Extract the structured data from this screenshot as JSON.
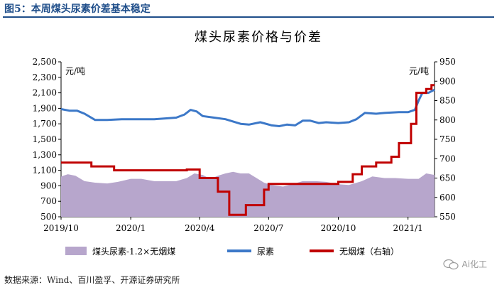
{
  "caption": "图5：本周煤头尿素价差基本稳定",
  "source": "数据来源：Wind、百川盈孚、开源证券研究所",
  "watermark": "Ai化工",
  "chart_data": {
    "type": "line",
    "title": "煤头尿素价格与价差",
    "left_unit": "元/吨",
    "right_unit": "元/吨",
    "ylim_left": [
      500,
      2500
    ],
    "yticks_left": [
      500,
      700,
      900,
      1100,
      1300,
      1500,
      1700,
      1900,
      2100,
      2300,
      2500
    ],
    "ytick_labels_left": [
      "500",
      "700",
      "900",
      "1,100",
      "1,300",
      "1,500",
      "1,700",
      "1,900",
      "2,100",
      "2,300",
      "2,500"
    ],
    "ylim_right": [
      550,
      950
    ],
    "yticks_right": [
      550,
      600,
      650,
      700,
      750,
      800,
      850,
      900,
      950
    ],
    "ytick_labels_right": [
      "550",
      "600",
      "650",
      "700",
      "750",
      "800",
      "850",
      "900",
      "950"
    ],
    "x_range": [
      "2019-10-01",
      "2021-02-05"
    ],
    "x_ticks": [
      "2019-10-01",
      "2020-01-01",
      "2020-04-01",
      "2020-07-01",
      "2020-10-01",
      "2021-01-01"
    ],
    "x_tick_labels": [
      "2019/10",
      "2020/1",
      "2020/4",
      "2020/7",
      "2020/10",
      "2021/1"
    ],
    "colors": {
      "spread": "#b7a6cc",
      "urea": "#3c78c8",
      "coal": "#c00000"
    },
    "series": [
      {
        "name": "煤头尿素-1.2×无烟煤",
        "axis": "left",
        "kind": "area",
        "points": [
          [
            "2019-10-01",
            1020
          ],
          [
            "2019-10-10",
            1050
          ],
          [
            "2019-10-20",
            1030
          ],
          [
            "2019-11-01",
            960
          ],
          [
            "2019-11-15",
            940
          ],
          [
            "2019-12-01",
            930
          ],
          [
            "2019-12-15",
            950
          ],
          [
            "2020-01-01",
            990
          ],
          [
            "2020-01-15",
            990
          ],
          [
            "2020-02-01",
            960
          ],
          [
            "2020-02-15",
            960
          ],
          [
            "2020-03-01",
            960
          ],
          [
            "2020-03-15",
            1000
          ],
          [
            "2020-03-25",
            1060
          ],
          [
            "2020-04-05",
            1040
          ],
          [
            "2020-04-15",
            990
          ],
          [
            "2020-04-25",
            1030
          ],
          [
            "2020-05-05",
            1060
          ],
          [
            "2020-05-15",
            1080
          ],
          [
            "2020-05-25",
            1060
          ],
          [
            "2020-06-05",
            1060
          ],
          [
            "2020-06-15",
            1000
          ],
          [
            "2020-06-25",
            940
          ],
          [
            "2020-07-05",
            910
          ],
          [
            "2020-07-20",
            890
          ],
          [
            "2020-08-01",
            920
          ],
          [
            "2020-08-15",
            960
          ],
          [
            "2020-09-01",
            960
          ],
          [
            "2020-09-15",
            950
          ],
          [
            "2020-10-01",
            920
          ],
          [
            "2020-10-15",
            910
          ],
          [
            "2020-11-01",
            960
          ],
          [
            "2020-11-15",
            1020
          ],
          [
            "2020-12-01",
            1000
          ],
          [
            "2020-12-15",
            1000
          ],
          [
            "2021-01-01",
            990
          ],
          [
            "2021-01-15",
            990
          ],
          [
            "2021-01-25",
            1060
          ],
          [
            "2021-02-05",
            1040
          ]
        ]
      },
      {
        "name": "尿素",
        "axis": "left",
        "kind": "line",
        "points": [
          [
            "2019-10-01",
            1890
          ],
          [
            "2019-10-12",
            1870
          ],
          [
            "2019-10-22",
            1870
          ],
          [
            "2019-11-01",
            1830
          ],
          [
            "2019-11-15",
            1750
          ],
          [
            "2019-12-01",
            1750
          ],
          [
            "2019-12-20",
            1760
          ],
          [
            "2020-01-01",
            1760
          ],
          [
            "2020-02-01",
            1760
          ],
          [
            "2020-03-01",
            1780
          ],
          [
            "2020-03-12",
            1820
          ],
          [
            "2020-03-20",
            1880
          ],
          [
            "2020-03-28",
            1860
          ],
          [
            "2020-04-05",
            1800
          ],
          [
            "2020-04-20",
            1780
          ],
          [
            "2020-05-05",
            1760
          ],
          [
            "2020-05-15",
            1730
          ],
          [
            "2020-05-25",
            1700
          ],
          [
            "2020-06-05",
            1690
          ],
          [
            "2020-06-20",
            1720
          ],
          [
            "2020-07-05",
            1680
          ],
          [
            "2020-07-15",
            1670
          ],
          [
            "2020-07-25",
            1690
          ],
          [
            "2020-08-05",
            1680
          ],
          [
            "2020-08-15",
            1740
          ],
          [
            "2020-08-25",
            1740
          ],
          [
            "2020-09-05",
            1710
          ],
          [
            "2020-09-15",
            1720
          ],
          [
            "2020-10-01",
            1710
          ],
          [
            "2020-10-15",
            1720
          ],
          [
            "2020-10-25",
            1760
          ],
          [
            "2020-11-05",
            1840
          ],
          [
            "2020-11-20",
            1830
          ],
          [
            "2020-12-01",
            1840
          ],
          [
            "2020-12-20",
            1850
          ],
          [
            "2021-01-01",
            1850
          ],
          [
            "2021-01-10",
            1880
          ],
          [
            "2021-01-15",
            2000
          ],
          [
            "2021-01-20",
            2100
          ],
          [
            "2021-01-28",
            2100
          ],
          [
            "2021-02-05",
            2140
          ]
        ]
      },
      {
        "name": "无烟煤（右轴）",
        "axis": "right",
        "kind": "step",
        "points": [
          [
            "2019-10-01",
            690
          ],
          [
            "2019-11-10",
            680
          ],
          [
            "2019-12-10",
            670
          ],
          [
            "2020-03-15",
            672
          ],
          [
            "2020-04-01",
            650
          ],
          [
            "2020-04-25",
            615
          ],
          [
            "2020-05-10",
            555
          ],
          [
            "2020-06-01",
            580
          ],
          [
            "2020-06-25",
            620
          ],
          [
            "2020-07-01",
            635
          ],
          [
            "2020-10-01",
            640
          ],
          [
            "2020-10-20",
            660
          ],
          [
            "2020-11-01",
            680
          ],
          [
            "2020-11-20",
            690
          ],
          [
            "2020-12-10",
            705
          ],
          [
            "2020-12-20",
            740
          ],
          [
            "2021-01-05",
            790
          ],
          [
            "2021-01-12",
            870
          ],
          [
            "2021-01-25",
            880
          ],
          [
            "2021-02-01",
            890
          ]
        ]
      }
    ],
    "legend_placement": "bottom"
  }
}
